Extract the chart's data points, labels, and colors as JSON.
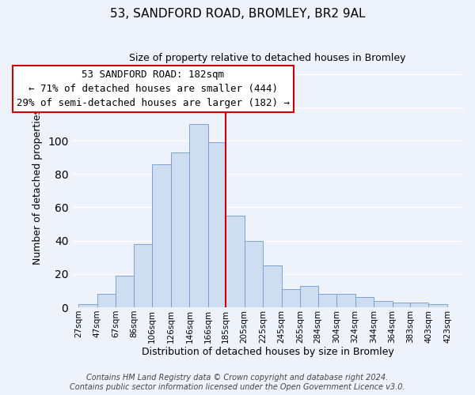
{
  "title": "53, SANDFORD ROAD, BROMLEY, BR2 9AL",
  "subtitle": "Size of property relative to detached houses in Bromley",
  "xlabel": "Distribution of detached houses by size in Bromley",
  "ylabel": "Number of detached properties",
  "bar_left_edges": [
    27,
    47,
    67,
    86,
    106,
    126,
    146,
    166,
    185,
    205,
    225,
    245,
    265,
    284,
    304,
    324,
    344,
    364,
    383,
    403
  ],
  "bar_heights": [
    2,
    8,
    19,
    38,
    86,
    93,
    110,
    99,
    55,
    40,
    25,
    11,
    13,
    8,
    8,
    6,
    4,
    3,
    3,
    2
  ],
  "bar_widths": [
    20,
    20,
    19,
    20,
    20,
    20,
    20,
    19,
    20,
    20,
    20,
    20,
    19,
    20,
    20,
    20,
    20,
    19,
    20,
    20
  ],
  "tick_labels": [
    "27sqm",
    "47sqm",
    "67sqm",
    "86sqm",
    "106sqm",
    "126sqm",
    "146sqm",
    "166sqm",
    "185sqm",
    "205sqm",
    "225sqm",
    "245sqm",
    "265sqm",
    "284sqm",
    "304sqm",
    "324sqm",
    "344sqm",
    "364sqm",
    "383sqm",
    "403sqm",
    "423sqm"
  ],
  "tick_positions": [
    27,
    47,
    67,
    86,
    106,
    126,
    146,
    166,
    185,
    205,
    225,
    245,
    265,
    284,
    304,
    324,
    344,
    364,
    383,
    403,
    423
  ],
  "bar_color": "#cfddf0",
  "bar_edge_color": "#7ba3d4",
  "vline_x": 185,
  "vline_color": "#cc0000",
  "ann_line1": "53 SANDFORD ROAD: 182sqm",
  "ann_line2": "← 71% of detached houses are smaller (444)",
  "ann_line3": "29% of semi-detached houses are larger (182) →",
  "annotation_box_edgecolor": "#cc0000",
  "annotation_box_facecolor": "#ffffff",
  "ylim": [
    0,
    145
  ],
  "xlim": [
    20,
    440
  ],
  "footer_line1": "Contains HM Land Registry data © Crown copyright and database right 2024.",
  "footer_line2": "Contains public sector information licensed under the Open Government Licence v3.0.",
  "background_color": "#eef2fb",
  "grid_color": "#ffffff",
  "title_fontsize": 11,
  "subtitle_fontsize": 9,
  "axis_label_fontsize": 9,
  "tick_fontsize": 7.5,
  "footer_fontsize": 7,
  "ann_fontsize": 9
}
